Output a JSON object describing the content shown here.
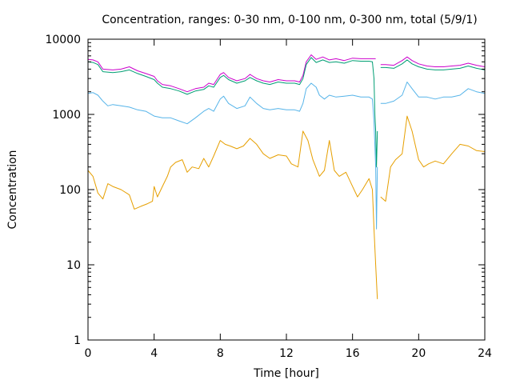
{
  "chart_data": {
    "type": "line",
    "title": "Concentration, ranges: 0-30 nm, 0-100 nm, 0-300 nm, total (5/9/1)",
    "xlabel": "Time [hour]",
    "ylabel": "Concentration",
    "xlim": [
      0,
      24
    ],
    "ylim": [
      1,
      10000
    ],
    "yscale": "log",
    "x_ticks": [
      0,
      4,
      8,
      12,
      16,
      20,
      24
    ],
    "x_tick_labels": [
      "0",
      "4",
      "8",
      "12",
      "16",
      "20",
      "24"
    ],
    "y_ticks": [
      1,
      10,
      100,
      1000,
      10000
    ],
    "y_tick_labels": [
      "1",
      "10",
      "100",
      "1000",
      "10000"
    ],
    "grid": false,
    "series": [
      {
        "color": "#cc00cc",
        "segments": [
          [
            [
              0,
              5400
            ],
            [
              0.3,
              5300
            ],
            [
              0.6,
              5000
            ],
            [
              0.9,
              4000
            ],
            [
              1.5,
              3900
            ],
            [
              2,
              4000
            ],
            [
              2.5,
              4300
            ],
            [
              3,
              3800
            ],
            [
              3.5,
              3500
            ],
            [
              4,
              3200
            ],
            [
              4.2,
              2800
            ],
            [
              4.5,
              2500
            ],
            [
              5,
              2400
            ],
            [
              5.5,
              2200
            ],
            [
              6,
              2000
            ],
            [
              6.5,
              2200
            ],
            [
              7,
              2300
            ],
            [
              7.3,
              2600
            ],
            [
              7.6,
              2500
            ],
            [
              8,
              3400
            ],
            [
              8.2,
              3600
            ],
            [
              8.5,
              3100
            ],
            [
              9,
              2800
            ],
            [
              9.5,
              3000
            ],
            [
              9.8,
              3400
            ],
            [
              10.2,
              3000
            ],
            [
              10.6,
              2800
            ],
            [
              11,
              2700
            ],
            [
              11.5,
              2900
            ],
            [
              12,
              2800
            ],
            [
              12.5,
              2800
            ],
            [
              12.8,
              2700
            ],
            [
              13,
              3300
            ],
            [
              13.2,
              5000
            ],
            [
              13.5,
              6200
            ],
            [
              13.8,
              5400
            ],
            [
              14.2,
              5800
            ],
            [
              14.6,
              5300
            ],
            [
              15,
              5500
            ],
            [
              15.5,
              5200
            ],
            [
              16,
              5600
            ],
            [
              16.5,
              5500
            ],
            [
              17,
              5500
            ],
            [
              17.4,
              5500
            ]
          ],
          [
            [
              17.7,
              4600
            ],
            [
              18,
              4600
            ],
            [
              18.5,
              4500
            ],
            [
              19,
              5200
            ],
            [
              19.3,
              5800
            ],
            [
              19.6,
              5200
            ],
            [
              20,
              4700
            ],
            [
              20.5,
              4400
            ],
            [
              21,
              4300
            ],
            [
              21.5,
              4300
            ],
            [
              22,
              4400
            ],
            [
              22.5,
              4500
            ],
            [
              23,
              4800
            ],
            [
              23.5,
              4500
            ],
            [
              24,
              4300
            ]
          ]
        ]
      },
      {
        "color": "#009e73",
        "segments": [
          [
            [
              0,
              5000
            ],
            [
              0.3,
              4900
            ],
            [
              0.6,
              4600
            ],
            [
              0.9,
              3700
            ],
            [
              1.5,
              3600
            ],
            [
              2,
              3700
            ],
            [
              2.5,
              3900
            ],
            [
              3,
              3500
            ],
            [
              3.5,
              3200
            ],
            [
              4,
              2900
            ],
            [
              4.2,
              2600
            ],
            [
              4.5,
              2300
            ],
            [
              5,
              2200
            ],
            [
              5.5,
              2050
            ],
            [
              6,
              1850
            ],
            [
              6.5,
              2050
            ],
            [
              7,
              2150
            ],
            [
              7.3,
              2400
            ],
            [
              7.6,
              2300
            ],
            [
              8,
              3100
            ],
            [
              8.2,
              3300
            ],
            [
              8.5,
              2900
            ],
            [
              9,
              2600
            ],
            [
              9.5,
              2800
            ],
            [
              9.8,
              3100
            ],
            [
              10.2,
              2800
            ],
            [
              10.6,
              2600
            ],
            [
              11,
              2500
            ],
            [
              11.5,
              2700
            ],
            [
              12,
              2600
            ],
            [
              12.5,
              2600
            ],
            [
              12.8,
              2500
            ],
            [
              13,
              3000
            ],
            [
              13.2,
              4600
            ],
            [
              13.5,
              5700
            ],
            [
              13.8,
              4900
            ],
            [
              14.2,
              5300
            ],
            [
              14.6,
              4900
            ],
            [
              15,
              5000
            ],
            [
              15.5,
              4800
            ],
            [
              16,
              5200
            ],
            [
              16.5,
              5100
            ],
            [
              17,
              5100
            ],
            [
              17.2,
              5000
            ],
            [
              17.3,
              3000
            ],
            [
              17.35,
              1000
            ],
            [
              17.4,
              600
            ],
            [
              17.45,
              200
            ],
            [
              17.5,
              600
            ]
          ],
          [
            [
              17.7,
              4200
            ],
            [
              18,
              4200
            ],
            [
              18.5,
              4100
            ],
            [
              19,
              4700
            ],
            [
              19.3,
              5300
            ],
            [
              19.6,
              4700
            ],
            [
              20,
              4300
            ],
            [
              20.5,
              4000
            ],
            [
              21,
              3900
            ],
            [
              21.5,
              3900
            ],
            [
              22,
              4000
            ],
            [
              22.5,
              4100
            ],
            [
              23,
              4400
            ],
            [
              23.5,
              4100
            ],
            [
              24,
              3900
            ]
          ]
        ]
      },
      {
        "color": "#56b4e9",
        "segments": [
          [
            [
              0,
              1900
            ],
            [
              0.3,
              1950
            ],
            [
              0.6,
              1800
            ],
            [
              0.9,
              1500
            ],
            [
              1.2,
              1300
            ],
            [
              1.5,
              1350
            ],
            [
              2,
              1300
            ],
            [
              2.5,
              1250
            ],
            [
              3,
              1150
            ],
            [
              3.5,
              1100
            ],
            [
              4,
              950
            ],
            [
              4.5,
              900
            ],
            [
              5,
              900
            ],
            [
              5.5,
              820
            ],
            [
              6,
              750
            ],
            [
              6.5,
              900
            ],
            [
              7,
              1100
            ],
            [
              7.3,
              1200
            ],
            [
              7.6,
              1100
            ],
            [
              8,
              1600
            ],
            [
              8.2,
              1750
            ],
            [
              8.5,
              1400
            ],
            [
              9,
              1200
            ],
            [
              9.5,
              1300
            ],
            [
              9.8,
              1700
            ],
            [
              10.2,
              1400
            ],
            [
              10.6,
              1200
            ],
            [
              11,
              1150
            ],
            [
              11.5,
              1200
            ],
            [
              12,
              1150
            ],
            [
              12.5,
              1150
            ],
            [
              12.8,
              1100
            ],
            [
              13,
              1400
            ],
            [
              13.2,
              2200
            ],
            [
              13.5,
              2600
            ],
            [
              13.8,
              2300
            ],
            [
              14,
              1800
            ],
            [
              14.3,
              1600
            ],
            [
              14.6,
              1800
            ],
            [
              15,
              1700
            ],
            [
              15.5,
              1750
            ],
            [
              16,
              1800
            ],
            [
              16.5,
              1700
            ],
            [
              17,
              1700
            ],
            [
              17.2,
              1600
            ],
            [
              17.3,
              800
            ],
            [
              17.4,
              200
            ],
            [
              17.45,
              30
            ],
            [
              17.5,
              200
            ]
          ],
          [
            [
              17.7,
              1400
            ],
            [
              18,
              1400
            ],
            [
              18.5,
              1500
            ],
            [
              19,
              1800
            ],
            [
              19.3,
              2700
            ],
            [
              19.6,
              2200
            ],
            [
              20,
              1700
            ],
            [
              20.5,
              1700
            ],
            [
              21,
              1600
            ],
            [
              21.5,
              1700
            ],
            [
              22,
              1700
            ],
            [
              22.5,
              1800
            ],
            [
              23,
              2200
            ],
            [
              23.5,
              2000
            ],
            [
              24,
              1900
            ]
          ]
        ]
      },
      {
        "color": "#e69f00",
        "segments": [
          [
            [
              0,
              180
            ],
            [
              0.3,
              150
            ],
            [
              0.6,
              90
            ],
            [
              0.9,
              75
            ],
            [
              1.2,
              120
            ],
            [
              1.5,
              110
            ],
            [
              2,
              100
            ],
            [
              2.5,
              85
            ],
            [
              2.8,
              55
            ],
            [
              3.2,
              60
            ],
            [
              3.6,
              65
            ],
            [
              3.9,
              70
            ],
            [
              4,
              110
            ],
            [
              4.2,
              80
            ],
            [
              4.5,
              110
            ],
            [
              4.8,
              150
            ],
            [
              5,
              200
            ],
            [
              5.3,
              230
            ],
            [
              5.7,
              250
            ],
            [
              6,
              170
            ],
            [
              6.3,
              200
            ],
            [
              6.7,
              190
            ],
            [
              7,
              260
            ],
            [
              7.3,
              200
            ],
            [
              7.6,
              280
            ],
            [
              8,
              450
            ],
            [
              8.3,
              400
            ],
            [
              8.6,
              380
            ],
            [
              9,
              350
            ],
            [
              9.4,
              380
            ],
            [
              9.8,
              480
            ],
            [
              10.2,
              400
            ],
            [
              10.6,
              300
            ],
            [
              11,
              260
            ],
            [
              11.5,
              290
            ],
            [
              12,
              280
            ],
            [
              12.3,
              220
            ],
            [
              12.7,
              200
            ],
            [
              13,
              600
            ],
            [
              13.3,
              450
            ],
            [
              13.6,
              250
            ],
            [
              14,
              150
            ],
            [
              14.3,
              180
            ],
            [
              14.6,
              450
            ],
            [
              14.9,
              180
            ],
            [
              15.2,
              150
            ],
            [
              15.6,
              170
            ],
            [
              16,
              110
            ],
            [
              16.3,
              80
            ],
            [
              16.6,
              100
            ],
            [
              17,
              140
            ],
            [
              17.2,
              100
            ],
            [
              17.3,
              30
            ],
            [
              17.4,
              10
            ],
            [
              17.5,
              3.5
            ]
          ],
          [
            [
              17.7,
              80
            ],
            [
              18,
              70
            ],
            [
              18.3,
              200
            ],
            [
              18.6,
              250
            ],
            [
              19,
              300
            ],
            [
              19.3,
              950
            ],
            [
              19.6,
              600
            ],
            [
              20,
              250
            ],
            [
              20.3,
              200
            ],
            [
              20.6,
              220
            ],
            [
              21,
              240
            ],
            [
              21.5,
              220
            ],
            [
              22,
              300
            ],
            [
              22.5,
              400
            ],
            [
              23,
              380
            ],
            [
              23.5,
              330
            ],
            [
              24,
              320
            ]
          ]
        ]
      }
    ]
  }
}
